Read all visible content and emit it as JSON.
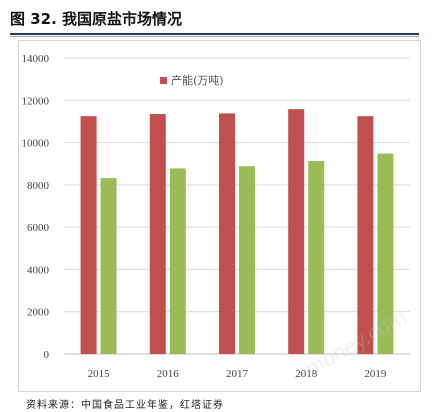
{
  "figure": {
    "title": "图 32. 我国原盐市场情况",
    "source": "资料来源：中国食品工业年鉴，红塔证券",
    "watermark": "money.com"
  },
  "colors": {
    "series_1": "#c0504d",
    "series_2": "#9bbb59",
    "rule": "#1f3a68",
    "grid": "#d9d9d9"
  },
  "chart_data": {
    "type": "bar",
    "categories": [
      "2015",
      "2016",
      "2017",
      "2018",
      "2019"
    ],
    "series": [
      {
        "name": "产能(万吨)",
        "values": [
          11250,
          11350,
          11380,
          11580,
          11250
        ]
      },
      {
        "name": "",
        "values": [
          8320,
          8780,
          8880,
          9130,
          9480
        ]
      }
    ],
    "title": "",
    "xlabel": "",
    "ylabel": "",
    "ylim": [
      0,
      14000
    ],
    "yticks": [
      0,
      2000,
      4000,
      6000,
      8000,
      10000,
      12000,
      14000
    ],
    "grid": true,
    "legend": "top-left"
  }
}
